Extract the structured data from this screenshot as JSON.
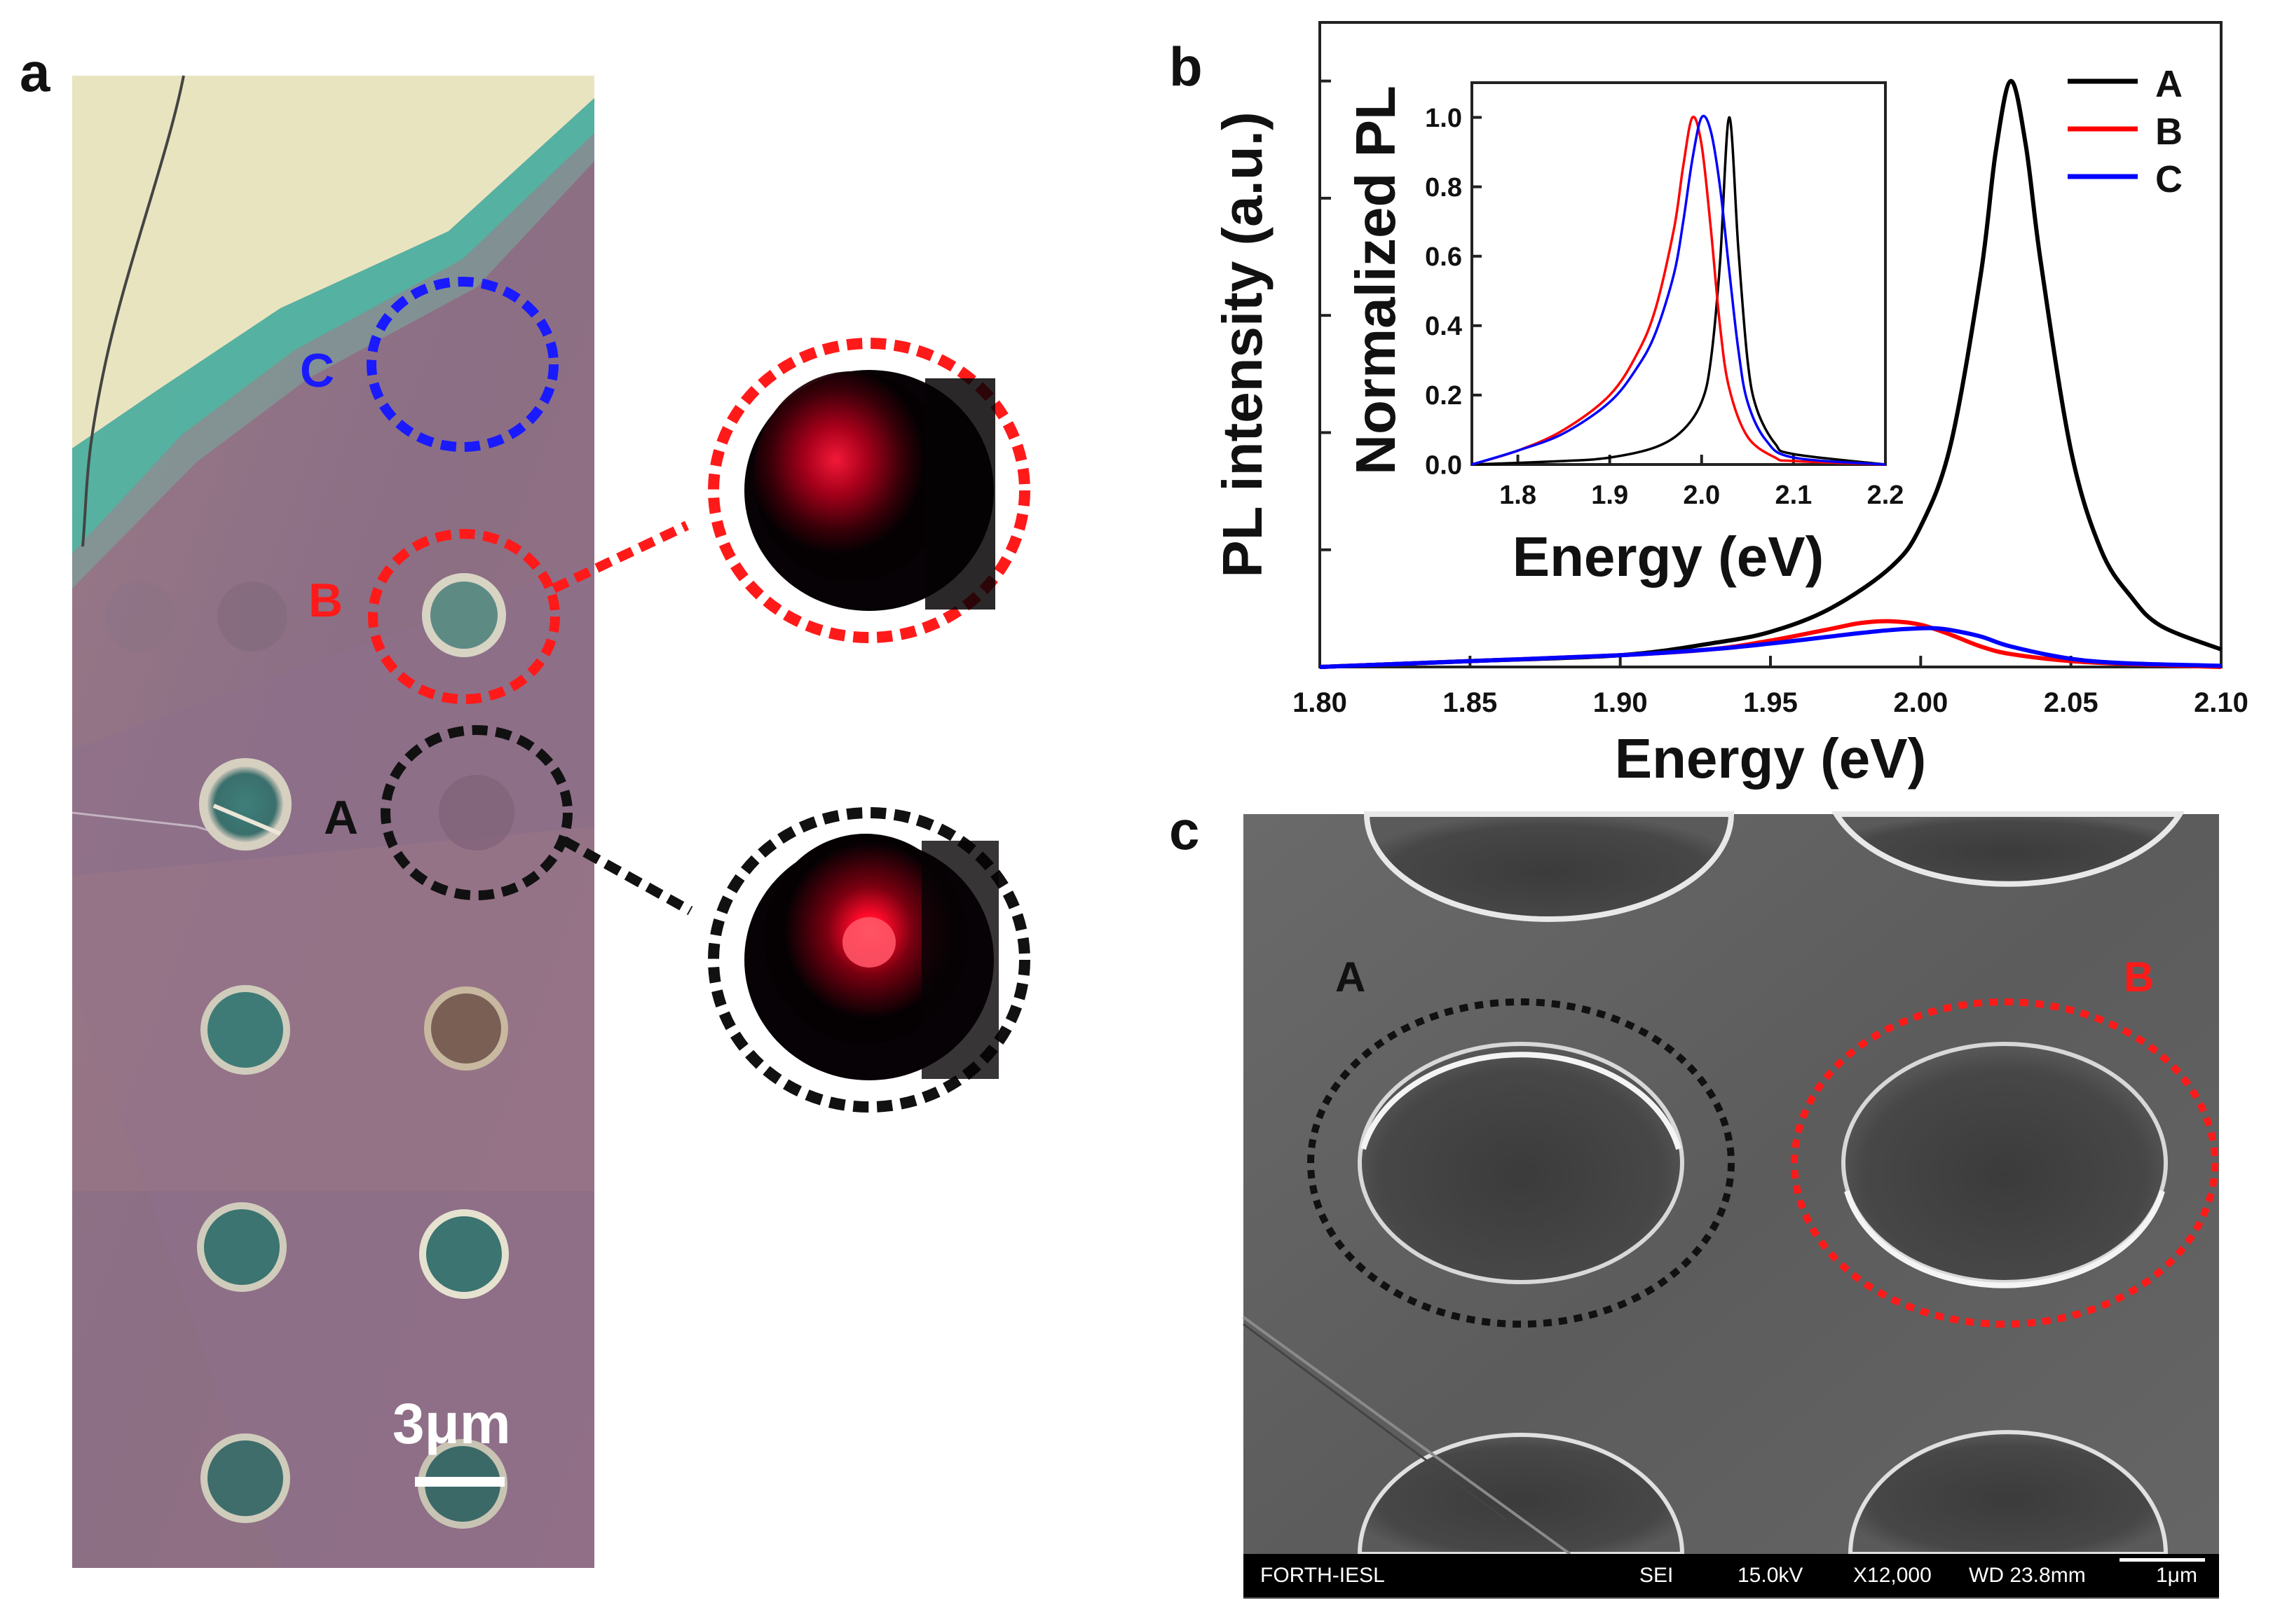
{
  "panels": {
    "a": "a",
    "b": "b",
    "c": "c"
  },
  "panel_a": {
    "labels": {
      "A": "A",
      "B": "B",
      "C": "C"
    },
    "scale_bar": "3μm",
    "colors": {
      "A": "#111111",
      "B": "#ff1a1a",
      "C": "#1a1aff"
    }
  },
  "panel_c": {
    "labels": {
      "A": "A",
      "B": "B"
    },
    "info_bar": {
      "lab": "FORTH-IESL",
      "mode": "SEI",
      "voltage": "15.0kV",
      "magnification": "X12,000",
      "wd": "WD 23.8mm",
      "scale": "1μm"
    }
  },
  "chart_data": [
    {
      "type": "line",
      "title": "",
      "xlabel": "Energy (eV)",
      "ylabel": "PL intensity (a.u.)",
      "xlim": [
        1.8,
        2.1
      ],
      "ylim": [
        0,
        1.1
      ],
      "x_ticks": [
        "1.80",
        "1.85",
        "1.90",
        "1.95",
        "2.00",
        "2.05",
        "2.10"
      ],
      "y_tick_labels_shown": false,
      "legend": {
        "placement": "top-right",
        "entries": [
          "A",
          "B",
          "C"
        ]
      },
      "series": [
        {
          "name": "A",
          "color": "#000000",
          "x": [
            1.8,
            1.85,
            1.9,
            1.93,
            1.95,
            1.97,
            1.99,
            2.0,
            2.01,
            2.02,
            2.025,
            2.03,
            2.035,
            2.04,
            2.05,
            2.06,
            2.07,
            2.08,
            2.1
          ],
          "y": [
            0.0,
            0.01,
            0.02,
            0.04,
            0.06,
            0.1,
            0.17,
            0.24,
            0.38,
            0.67,
            0.88,
            1.0,
            0.89,
            0.69,
            0.37,
            0.2,
            0.12,
            0.07,
            0.03
          ]
        },
        {
          "name": "B",
          "color": "#ff0000",
          "x": [
            1.8,
            1.85,
            1.9,
            1.93,
            1.95,
            1.97,
            1.98,
            1.99,
            2.0,
            2.01,
            2.02,
            2.03,
            2.05,
            2.07,
            2.1
          ],
          "y": [
            0.0,
            0.01,
            0.02,
            0.03,
            0.045,
            0.065,
            0.075,
            0.078,
            0.072,
            0.055,
            0.035,
            0.022,
            0.01,
            0.005,
            0.0
          ]
        },
        {
          "name": "C",
          "color": "#0000ff",
          "x": [
            1.8,
            1.85,
            1.9,
            1.93,
            1.95,
            1.97,
            1.98,
            1.99,
            2.0,
            2.005,
            2.01,
            2.02,
            2.03,
            2.05,
            2.07,
            2.1
          ],
          "y": [
            0.0,
            0.01,
            0.02,
            0.03,
            0.04,
            0.052,
            0.058,
            0.063,
            0.066,
            0.066,
            0.063,
            0.052,
            0.035,
            0.014,
            0.006,
            0.002
          ]
        }
      ]
    },
    {
      "type": "line",
      "title": "",
      "xlabel": "Energy (eV)",
      "ylabel": "Normalized PL",
      "xlim": [
        1.75,
        2.2
      ],
      "ylim": [
        0,
        1.1
      ],
      "x_ticks": [
        "1.8",
        "1.9",
        "2.0",
        "2.1",
        "2.2"
      ],
      "y_ticks": [
        "0.0",
        "0.2",
        "0.4",
        "0.6",
        "0.8",
        "1.0"
      ],
      "series": [
        {
          "name": "A",
          "color": "#000000",
          "x": [
            1.75,
            1.85,
            1.9,
            1.95,
            1.98,
            2.0,
            2.01,
            2.02,
            2.03,
            2.04,
            2.05,
            2.06,
            2.08,
            2.1,
            2.2
          ],
          "y": [
            0.0,
            0.01,
            0.02,
            0.05,
            0.1,
            0.18,
            0.3,
            0.58,
            1.0,
            0.62,
            0.3,
            0.16,
            0.06,
            0.03,
            0.0
          ]
        },
        {
          "name": "B",
          "color": "#ff0000",
          "x": [
            1.75,
            1.8,
            1.85,
            1.9,
            1.93,
            1.95,
            1.97,
            1.98,
            1.99,
            2.0,
            2.01,
            2.02,
            2.03,
            2.05,
            2.08,
            2.1,
            2.2
          ],
          "y": [
            0.0,
            0.04,
            0.1,
            0.2,
            0.32,
            0.45,
            0.68,
            0.86,
            1.0,
            0.92,
            0.68,
            0.4,
            0.22,
            0.08,
            0.02,
            0.01,
            0.0
          ]
        },
        {
          "name": "C",
          "color": "#0000ff",
          "x": [
            1.75,
            1.8,
            1.85,
            1.9,
            1.93,
            1.95,
            1.97,
            1.98,
            1.99,
            2.0,
            2.01,
            2.02,
            2.03,
            2.04,
            2.05,
            2.07,
            2.1,
            2.2
          ],
          "y": [
            0.0,
            0.04,
            0.09,
            0.18,
            0.28,
            0.38,
            0.55,
            0.7,
            0.88,
            1.0,
            0.96,
            0.8,
            0.56,
            0.33,
            0.18,
            0.07,
            0.02,
            0.0
          ]
        }
      ]
    }
  ]
}
